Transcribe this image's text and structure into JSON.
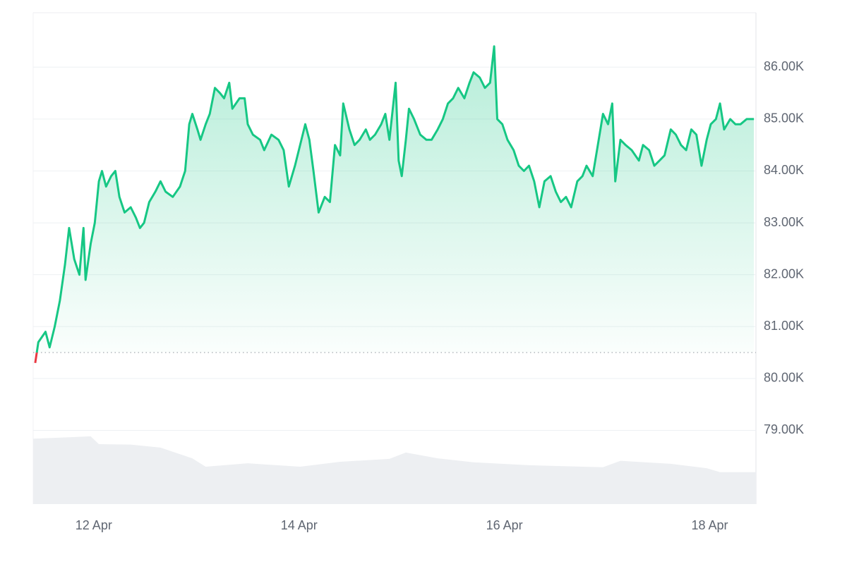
{
  "chart_data": {
    "type": "line",
    "x": [
      11.43,
      11.46,
      11.53,
      11.57,
      11.62,
      11.67,
      11.72,
      11.76,
      11.81,
      11.86,
      11.9,
      11.92,
      11.97,
      12.01,
      12.05,
      12.08,
      12.12,
      12.17,
      12.21,
      12.25,
      12.3,
      12.36,
      12.41,
      12.45,
      12.49,
      12.54,
      12.6,
      12.65,
      12.7,
      12.77,
      12.84,
      12.89,
      12.93,
      12.96,
      13.01,
      13.04,
      13.09,
      13.13,
      13.18,
      13.23,
      13.27,
      13.32,
      13.35,
      13.42,
      13.47,
      13.5,
      13.55,
      13.62,
      13.66,
      13.73,
      13.8,
      13.85,
      13.9,
      13.96,
      14.01,
      14.06,
      14.1,
      14.14,
      14.19,
      14.25,
      14.3,
      14.35,
      14.4,
      14.43,
      14.49,
      14.54,
      14.59,
      14.65,
      14.69,
      14.74,
      14.8,
      14.84,
      14.88,
      14.94,
      14.97,
      15.0,
      15.04,
      15.07,
      15.12,
      15.18,
      15.24,
      15.29,
      15.35,
      15.4,
      15.45,
      15.5,
      15.55,
      15.61,
      15.66,
      15.7,
      15.76,
      15.81,
      15.86,
      15.9,
      15.93,
      15.98,
      16.03,
      16.09,
      16.14,
      16.19,
      16.24,
      16.29,
      16.34,
      16.39,
      16.45,
      16.5,
      16.55,
      16.6,
      16.65,
      16.71,
      16.76,
      16.8,
      16.86,
      16.91,
      16.96,
      17.01,
      17.05,
      17.08,
      17.13,
      17.18,
      17.24,
      17.31,
      17.35,
      17.41,
      17.46,
      17.51,
      17.56,
      17.62,
      17.67,
      17.72,
      17.77,
      17.82,
      17.87,
      17.92,
      17.97,
      18.01,
      18.06,
      18.1,
      18.14,
      18.2,
      18.25,
      18.3,
      18.36,
      18.43
    ],
    "series": [
      {
        "color": "#16c784",
        "values": [
          80300,
          80700,
          80900,
          80600,
          81000,
          81500,
          82200,
          82900,
          82300,
          82000,
          82900,
          81900,
          82600,
          83000,
          83800,
          84000,
          83700,
          83900,
          84000,
          83500,
          83200,
          83300,
          83100,
          82900,
          83000,
          83400,
          83600,
          83800,
          83600,
          83500,
          83700,
          84000,
          84900,
          85100,
          84800,
          84600,
          84900,
          85100,
          85600,
          85500,
          85400,
          85700,
          85200,
          85400,
          85400,
          84900,
          84700,
          84600,
          84400,
          84700,
          84600,
          84400,
          83700,
          84100,
          84500,
          84900,
          84600,
          84000,
          83200,
          83500,
          83400,
          84500,
          84300,
          85300,
          84800,
          84500,
          84600,
          84800,
          84600,
          84700,
          84900,
          85100,
          84600,
          85700,
          84200,
          83900,
          84600,
          85200,
          85000,
          84700,
          84600,
          84600,
          84800,
          85000,
          85300,
          85400,
          85600,
          85400,
          85700,
          85900,
          85800,
          85600,
          85700,
          86400,
          85000,
          84900,
          84600,
          84400,
          84100,
          84000,
          84100,
          83800,
          83300,
          83800,
          83900,
          83600,
          83400,
          83500,
          83300,
          83800,
          83900,
          84100,
          83900,
          84500,
          85100,
          84900,
          85300,
          83800,
          84600,
          84500,
          84400,
          84200,
          84500,
          84400,
          84100,
          84200,
          84300,
          84800,
          84700,
          84500,
          84400,
          84800,
          84700,
          84100,
          84600,
          84900,
          85000,
          85300,
          84800,
          85000,
          84900,
          84900,
          85000,
          85000
        ]
      }
    ],
    "baseline": 80500,
    "below_color": "#ea3943",
    "xlim": [
      11.41,
      18.45
    ],
    "ylim": [
      77580,
      87050
    ],
    "xticks": [
      {
        "value": 12,
        "label": "12 Apr"
      },
      {
        "value": 14,
        "label": "14 Apr"
      },
      {
        "value": 16,
        "label": "16 Apr"
      },
      {
        "value": 18,
        "label": "18 Apr"
      }
    ],
    "yticks": [
      {
        "value": 79000,
        "label": "79.00K"
      },
      {
        "value": 80000,
        "label": "80.00K"
      },
      {
        "value": 81000,
        "label": "81.00K"
      },
      {
        "value": 82000,
        "label": "82.00K"
      },
      {
        "value": 83000,
        "label": "83.00K"
      },
      {
        "value": 84000,
        "label": "84.00K"
      },
      {
        "value": 85000,
        "label": "85.00K"
      },
      {
        "value": 86000,
        "label": "86.00K"
      }
    ],
    "grid": true,
    "volume": {
      "color": "#edeff2",
      "ylim": [
        0,
        100
      ],
      "x": [
        11.43,
        11.76,
        11.97,
        12.05,
        12.36,
        12.65,
        12.96,
        13.09,
        13.5,
        14.01,
        14.4,
        14.88,
        15.04,
        15.35,
        15.7,
        16.24,
        16.96,
        17.13,
        17.62,
        17.97,
        18.1,
        18.43
      ],
      "values": [
        13.3,
        13.6,
        13.8,
        12.2,
        12.1,
        11.5,
        9.3,
        7.6,
        8.3,
        7.6,
        8.6,
        9.2,
        10.5,
        9.3,
        8.5,
        7.9,
        7.5,
        8.8,
        8.2,
        7.3,
        6.5,
        6.5
      ]
    }
  }
}
